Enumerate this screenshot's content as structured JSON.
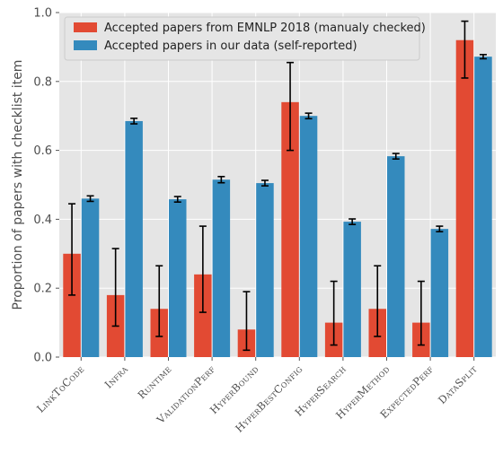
{
  "chart_data": {
    "type": "bar",
    "ylabel": "Proportion of papers with checklist item",
    "xlabel": "",
    "ylim": [
      0,
      1.0
    ],
    "yticks": [
      "0.0",
      "0.2",
      "0.4",
      "0.6",
      "0.8",
      "1.0"
    ],
    "grid": true,
    "legend_position": "top-left",
    "categories": [
      "LinkToCode",
      "Infra",
      "Runtime",
      "ValidationPerf",
      "HyperBound",
      "HyperBestConfig",
      "HyperSearch",
      "HyperMethod",
      "ExpectedPerf",
      "DataSplit"
    ],
    "series": [
      {
        "name": "Accepted papers from EMNLP 2018 (manualy checked)",
        "color": "#e24a33",
        "values": [
          0.3,
          0.18,
          0.14,
          0.24,
          0.08,
          0.74,
          0.1,
          0.14,
          0.1,
          0.92
        ],
        "err_low": [
          0.18,
          0.09,
          0.06,
          0.13,
          0.02,
          0.6,
          0.035,
          0.06,
          0.035,
          0.81
        ],
        "err_high": [
          0.445,
          0.315,
          0.265,
          0.38,
          0.19,
          0.855,
          0.22,
          0.265,
          0.22,
          0.975
        ]
      },
      {
        "name": "Accepted papers in our data (self-reported)",
        "color": "#348abd",
        "values": [
          0.46,
          0.685,
          0.458,
          0.515,
          0.505,
          0.7,
          0.393,
          0.583,
          0.372,
          0.872
        ],
        "err_low": [
          0.452,
          0.677,
          0.45,
          0.506,
          0.497,
          0.692,
          0.385,
          0.575,
          0.364,
          0.866
        ],
        "err_high": [
          0.468,
          0.693,
          0.466,
          0.524,
          0.513,
          0.708,
          0.401,
          0.591,
          0.38,
          0.878
        ]
      }
    ]
  }
}
